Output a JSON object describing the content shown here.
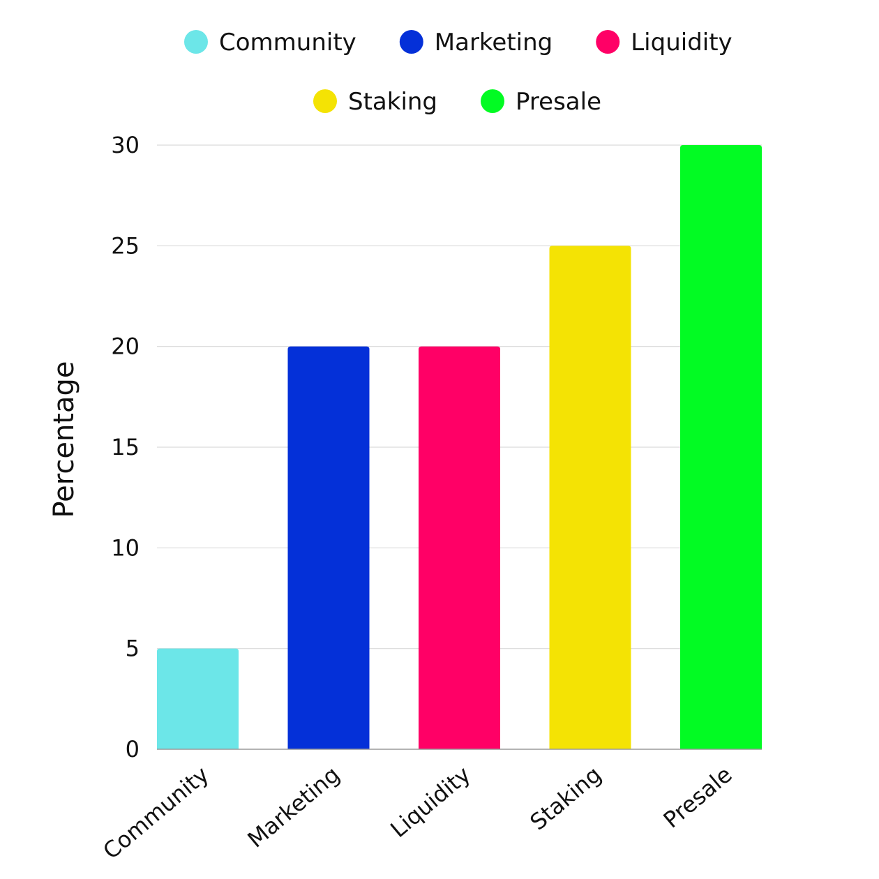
{
  "chart_data": {
    "type": "bar",
    "categories": [
      "Community",
      "Marketing",
      "Liquidity",
      "Staking",
      "Presale"
    ],
    "values": [
      5,
      20,
      20,
      25,
      30
    ],
    "colors": [
      "#6ce6e8",
      "#0430d8",
      "#ff0066",
      "#f4e304",
      "#02fb23"
    ],
    "title": "",
    "xlabel": "",
    "ylabel": "Percentage",
    "ylim": [
      0,
      30
    ],
    "yticks": [
      0,
      5,
      10,
      15,
      20,
      25,
      30
    ],
    "grid": true,
    "legend": {
      "position": "top-center",
      "entries": [
        "Community",
        "Marketing",
        "Liquidity",
        "Staking",
        "Presale"
      ]
    }
  }
}
